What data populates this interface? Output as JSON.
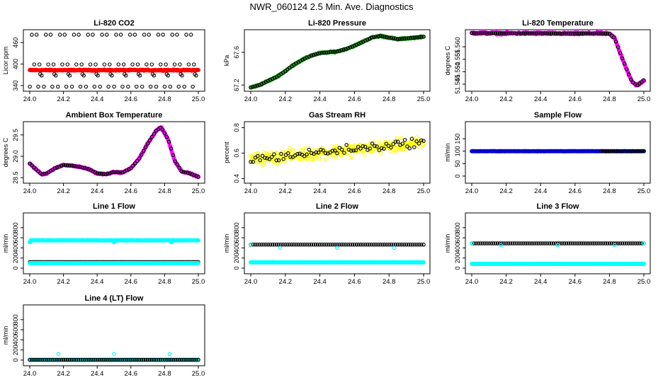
{
  "page": {
    "title": "NWR_060124  2.5 Min. Ave. Diagnostics"
  },
  "colors": {
    "black": "#000000",
    "red": "#ff0000",
    "green": "#22b022",
    "magenta": "#ff00ff",
    "yellow": "#ffff00",
    "blue": "#0000cc",
    "cyan": "#00ffff"
  },
  "chart_data": [
    {
      "id": "co2",
      "type": "scatter",
      "title": "Li-820 CO2",
      "xlabel": "",
      "ylabel": "Licor ppm",
      "xlim": [
        24.0,
        25.0
      ],
      "ylim": [
        330,
        490
      ],
      "xticks": [
        "24.0",
        "24.2",
        "24.4",
        "24.6",
        "24.8",
        "25.0"
      ],
      "yticks": [
        "340",
        "400",
        "460"
      ],
      "series": [
        {
          "name": "reference levels",
          "color": "black",
          "marker": "open",
          "pattern": "co2",
          "levels": [
            482,
            399,
            372,
            337
          ]
        },
        {
          "name": "CO2",
          "color": "red",
          "marker": "filled",
          "pattern": "flat",
          "value": 383,
          "jitter": 2
        }
      ]
    },
    {
      "id": "pressure",
      "type": "scatter",
      "title": "Li-820 Pressure",
      "xlabel": "",
      "ylabel": "kPa",
      "xlim": [
        24.0,
        25.0
      ],
      "ylim": [
        67.15,
        67.85
      ],
      "xticks": [
        "24.0",
        "24.2",
        "24.4",
        "24.6",
        "24.8",
        "25.0"
      ],
      "yticks": [
        "67.2",
        "67.6"
      ],
      "series": [
        {
          "name": "pressure",
          "color": "green",
          "marker": "filled",
          "pattern": "curve",
          "jitter": 0.012,
          "x": [
            24.0,
            24.05,
            24.1,
            24.15,
            24.2,
            24.25,
            24.3,
            24.35,
            24.4,
            24.5,
            24.55,
            24.6,
            24.65,
            24.7,
            24.75,
            24.8,
            24.85,
            24.9,
            25.0
          ],
          "y": [
            67.17,
            67.2,
            67.25,
            67.3,
            67.37,
            67.45,
            67.51,
            67.56,
            67.59,
            67.61,
            67.64,
            67.68,
            67.73,
            67.78,
            67.8,
            67.78,
            67.76,
            67.77,
            67.79
          ]
        },
        {
          "name": "pressure markers",
          "color": "black",
          "marker": "open",
          "pattern": "curve-sparse",
          "of": 0
        }
      ]
    },
    {
      "id": "licor-temp",
      "type": "scatter",
      "title": "Li-820 Temperature",
      "xlabel": "",
      "ylabel": "degrees C",
      "xlim": [
        24.0,
        25.0
      ],
      "ylim": [
        51.543,
        51.566
      ],
      "xticks": [
        "24.0",
        "24.2",
        "24.4",
        "24.6",
        "24.8",
        "25.0"
      ],
      "yticks": [
        "51.545",
        "51.550",
        "51.555",
        "51.560"
      ],
      "series": [
        {
          "name": "temperature",
          "color": "magenta",
          "marker": "filled",
          "pattern": "curve",
          "jitter": 0.0006,
          "x": [
            24.0,
            24.2,
            24.4,
            24.6,
            24.75,
            24.8,
            24.83,
            24.86,
            24.9,
            24.93,
            24.96,
            25.0
          ],
          "y": [
            51.5655,
            51.5654,
            51.5654,
            51.5653,
            51.5654,
            51.5652,
            51.5635,
            51.558,
            51.551,
            51.546,
            51.5445,
            51.5465
          ]
        },
        {
          "name": "temperature markers",
          "color": "black",
          "marker": "open",
          "pattern": "curve-sparse",
          "of": 0
        }
      ]
    },
    {
      "id": "box-temp",
      "type": "scatter",
      "title": "Ambient Box Temperature",
      "xlabel": "",
      "ylabel": "degrees C",
      "xlim": [
        24.0,
        25.0
      ],
      "ylim": [
        28.42,
        29.76
      ],
      "xticks": [
        "24.0",
        "24.2",
        "24.4",
        "24.6",
        "24.8",
        "25.0"
      ],
      "yticks": [
        "28.5",
        "29.0",
        "29.5"
      ],
      "series": [
        {
          "name": "box temperature",
          "color": "magenta",
          "marker": "filled",
          "pattern": "curve",
          "jitter": 0.02,
          "x": [
            24.0,
            24.03,
            24.07,
            24.1,
            24.15,
            24.2,
            24.25,
            24.3,
            24.35,
            24.4,
            24.45,
            24.5,
            24.55,
            24.6,
            24.65,
            24.7,
            24.75,
            24.78,
            24.82,
            24.86,
            24.9,
            24.95,
            25.0
          ],
          "y": [
            28.83,
            28.72,
            28.58,
            28.6,
            28.72,
            28.8,
            28.78,
            28.75,
            28.7,
            28.6,
            28.58,
            28.63,
            28.62,
            28.72,
            28.95,
            29.3,
            29.6,
            29.68,
            29.4,
            28.9,
            28.65,
            28.6,
            28.52
          ]
        },
        {
          "name": "box temperature markers",
          "color": "black",
          "marker": "open",
          "pattern": "curve-sparse",
          "of": 0
        }
      ]
    },
    {
      "id": "rh",
      "type": "scatter",
      "title": "Gas Stream RH",
      "xlabel": "",
      "ylabel": "percent",
      "xlim": [
        24.0,
        25.0
      ],
      "ylim": [
        0.38,
        0.83
      ],
      "xticks": [
        "24.0",
        "24.2",
        "24.4",
        "24.6",
        "24.8",
        "25.0"
      ],
      "yticks": [
        "0.4",
        "0.6",
        "0.8"
      ],
      "series": [
        {
          "name": "RH",
          "color": "yellow",
          "marker": "open",
          "pattern": "noisy-trend",
          "start": 0.55,
          "end": 0.68,
          "noise": 0.07,
          "count": 320
        },
        {
          "name": "RH averages",
          "color": "black",
          "marker": "open",
          "pattern": "noisy-trend",
          "start": 0.55,
          "end": 0.69,
          "noise": 0.05,
          "count": 75
        }
      ]
    },
    {
      "id": "sample-flow",
      "type": "scatter",
      "title": "Sample Flow",
      "xlabel": "",
      "ylabel": "ml/min",
      "xlim": [
        24.0,
        25.0
      ],
      "ylim": [
        -20,
        210
      ],
      "xticks": [
        "24.0",
        "24.2",
        "24.4",
        "24.6",
        "24.8",
        "25.0"
      ],
      "yticks": [
        "0",
        "50",
        "100",
        "150"
      ],
      "series": [
        {
          "name": "sample flow",
          "color": "blue",
          "marker": "filled",
          "pattern": "flat",
          "value": 100,
          "jitter": 0.4
        },
        {
          "name": "sample flow markers",
          "color": "black",
          "marker": "open",
          "pattern": "flat-sparse",
          "value": 100,
          "from": 24.75
        }
      ]
    },
    {
      "id": "line1",
      "type": "scatter",
      "title": "Line 1 Flow",
      "xlabel": "",
      "ylabel": "ml/min",
      "xlim": [
        24.0,
        25.0
      ],
      "ylim": [
        -70,
        1050
      ],
      "xticks": [
        "24.0",
        "24.2",
        "24.4",
        "24.6",
        "24.8",
        "25.0"
      ],
      "yticks": [
        "0",
        "200",
        "400",
        "600",
        "800"
      ],
      "series": [
        {
          "name": "line 1 bypass",
          "color": "cyan",
          "marker": "filled",
          "pattern": "flat",
          "value": 550,
          "jitter": 4,
          "dips": [
            24.0,
            24.5,
            24.84
          ],
          "dip": 515
        },
        {
          "name": "line 1 flow",
          "color": "black",
          "marker": "open",
          "pattern": "flat-sparse",
          "value": 120
        },
        {
          "name": "line 1 low",
          "color": "cyan",
          "marker": "filled",
          "pattern": "flat",
          "value": 100,
          "jitter": 1
        }
      ]
    },
    {
      "id": "line2",
      "type": "scatter",
      "title": "Line 2 Flow",
      "xlabel": "",
      "ylabel": "ml/min",
      "xlim": [
        24.0,
        25.0
      ],
      "ylim": [
        -70,
        1050
      ],
      "xticks": [
        "24.0",
        "24.2",
        "24.4",
        "24.6",
        "24.8",
        "25.0"
      ],
      "yticks": [
        "0",
        "200",
        "400",
        "600",
        "800"
      ],
      "series": [
        {
          "name": "line 2 flow",
          "color": "black",
          "marker": "open",
          "pattern": "flat-sparse",
          "value": 465
        },
        {
          "name": "line 2 bypass",
          "color": "cyan",
          "marker": "filled",
          "pattern": "flat",
          "value": 115,
          "jitter": 2
        },
        {
          "name": "line 2 dips",
          "color": "cyan",
          "marker": "open",
          "pattern": "points",
          "x": [
            24.0,
            24.17,
            24.5,
            24.83
          ],
          "y": [
            470,
            400,
            400,
            400
          ]
        }
      ]
    },
    {
      "id": "line3",
      "type": "scatter",
      "title": "Line 3 Flow",
      "xlabel": "",
      "ylabel": "ml/min",
      "xlim": [
        24.0,
        25.0
      ],
      "ylim": [
        -70,
        1050
      ],
      "xticks": [
        "24.0",
        "24.2",
        "24.4",
        "24.6",
        "24.8",
        "25.0"
      ],
      "yticks": [
        "0",
        "200",
        "400",
        "600",
        "800"
      ],
      "series": [
        {
          "name": "line 3 flow",
          "color": "black",
          "marker": "open",
          "pattern": "flat-sparse",
          "value": 490
        },
        {
          "name": "line 3 bypass",
          "color": "cyan",
          "marker": "filled",
          "pattern": "flat",
          "value": 85,
          "jitter": 2
        },
        {
          "name": "line 3 dips",
          "color": "cyan",
          "marker": "open",
          "pattern": "points",
          "x": [
            24.0,
            24.17,
            24.5,
            24.83,
            25.0
          ],
          "y": [
            490,
            455,
            455,
            455,
            490
          ]
        }
      ]
    },
    {
      "id": "line4",
      "type": "scatter",
      "title": "Line 4 (LT) Flow",
      "xlabel": "",
      "ylabel": "ml/min",
      "xlim": [
        24.0,
        25.0
      ],
      "ylim": [
        -70,
        1050
      ],
      "xticks": [
        "24.0",
        "24.2",
        "24.4",
        "24.6",
        "24.8",
        "25.0"
      ],
      "yticks": [
        "0",
        "200",
        "400",
        "600",
        "800"
      ],
      "series": [
        {
          "name": "line 4 bypass",
          "color": "cyan",
          "marker": "filled",
          "pattern": "flat",
          "value": 5,
          "jitter": 1
        },
        {
          "name": "line 4 flow",
          "color": "black",
          "marker": "open",
          "pattern": "flat-sparse",
          "value": 5
        },
        {
          "name": "line 4 spikes",
          "color": "cyan",
          "marker": "open",
          "pattern": "points",
          "x": [
            24.17,
            24.5,
            24.83
          ],
          "y": [
            120,
            120,
            120
          ]
        }
      ]
    }
  ]
}
